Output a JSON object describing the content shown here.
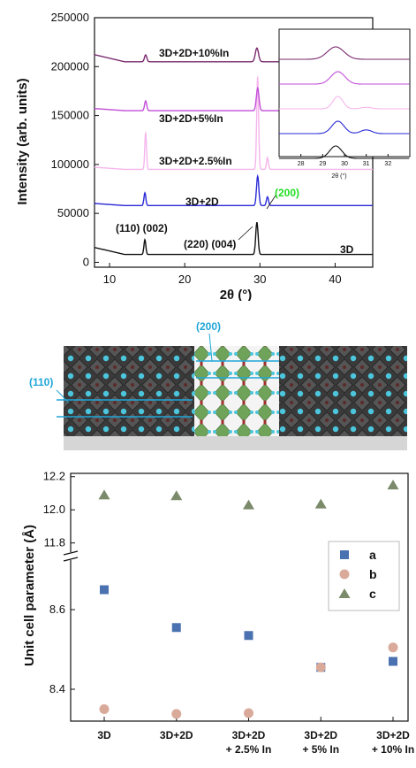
{
  "chart_data": [
    {
      "type": "line",
      "title": "",
      "xlabel": "2θ (°)",
      "ylabel": "Intensity (arb. units)",
      "xlim": [
        8,
        45
      ],
      "ylim": [
        -5000,
        250000
      ],
      "x_ticks": [
        "10",
        "20",
        "30",
        "40"
      ],
      "y_ticks": [
        "0",
        "50000",
        "100000",
        "150000",
        "200000",
        "250000"
      ],
      "series": [
        {
          "name": "3D",
          "color": "#111111",
          "baseline": 8000,
          "peaks": [
            {
              "x": 14.7,
              "h": 15000,
              "w": 0.18
            },
            {
              "x": 29.6,
              "h": 33000,
              "w": 0.22
            }
          ]
        },
        {
          "name": "3D+2D",
          "color": "#2a2ad6",
          "baseline": 58000,
          "peaks": [
            {
              "x": 14.7,
              "h": 13000,
              "w": 0.18
            },
            {
              "x": 29.7,
              "h": 30000,
              "w": 0.22
            },
            {
              "x": 31.0,
              "h": 9000,
              "w": 0.2
            }
          ]
        },
        {
          "name": "3D+2D+2.5%In",
          "color": "#f5b6ec",
          "baseline": 95000,
          "peaks": [
            {
              "x": 14.8,
              "h": 38000,
              "w": 0.16
            },
            {
              "x": 29.7,
              "h": 95000,
              "w": 0.18
            },
            {
              "x": 31.0,
              "h": 12000,
              "w": 0.18
            }
          ]
        },
        {
          "name": "3D+2D+5%In",
          "color": "#c24fd8",
          "baseline": 155000,
          "peaks": [
            {
              "x": 14.8,
              "h": 10000,
              "w": 0.2
            },
            {
              "x": 29.7,
              "h": 23000,
              "w": 0.25
            }
          ]
        },
        {
          "name": "3D+2D+10%In",
          "color": "#7a2a6e",
          "baseline": 205000,
          "peaks": [
            {
              "x": 14.8,
              "h": 7000,
              "w": 0.22
            },
            {
              "x": 29.6,
              "h": 14000,
              "w": 0.3
            }
          ]
        }
      ],
      "annotations": [
        "(110) (002)",
        "(220) (004)",
        "(200)"
      ],
      "inset": {
        "xlim": [
          27,
          33
        ],
        "x_ticks": [
          "28",
          "29",
          "30",
          "31",
          "32"
        ],
        "xlabel": "2θ (°)"
      }
    },
    {
      "type": "scatter",
      "title": "",
      "xlabel": "",
      "ylabel": "Unit cell parameter (Å)",
      "categories": [
        "3D",
        "3D+2D",
        "3D+2D\n+ 2.5% In",
        "3D+2D\n+ 5% In",
        "3D+2D\n+ 10% In"
      ],
      "y_ticks_upper": [
        "11.8",
        "12.0",
        "12.2"
      ],
      "y_ticks_lower": [
        "8.4",
        "8.6"
      ],
      "axis_break": true,
      "legend_placement": "right",
      "series": [
        {
          "name": "a",
          "marker": "square",
          "color": "#4a72b0",
          "values": [
            8.65,
            8.555,
            8.535,
            8.455,
            8.47
          ]
        },
        {
          "name": "b",
          "marker": "circle",
          "color": "#d9aa9a",
          "values": [
            8.35,
            8.338,
            8.34,
            8.455,
            8.505
          ]
        },
        {
          "name": "c",
          "marker": "triangle",
          "color": "#7a8a6a",
          "values": [
            12.09,
            12.085,
            12.03,
            12.035,
            12.15
          ]
        }
      ]
    }
  ],
  "structure": {
    "labels": [
      "(200)",
      "(110)"
    ],
    "accent_color": "#1fa6d8"
  }
}
